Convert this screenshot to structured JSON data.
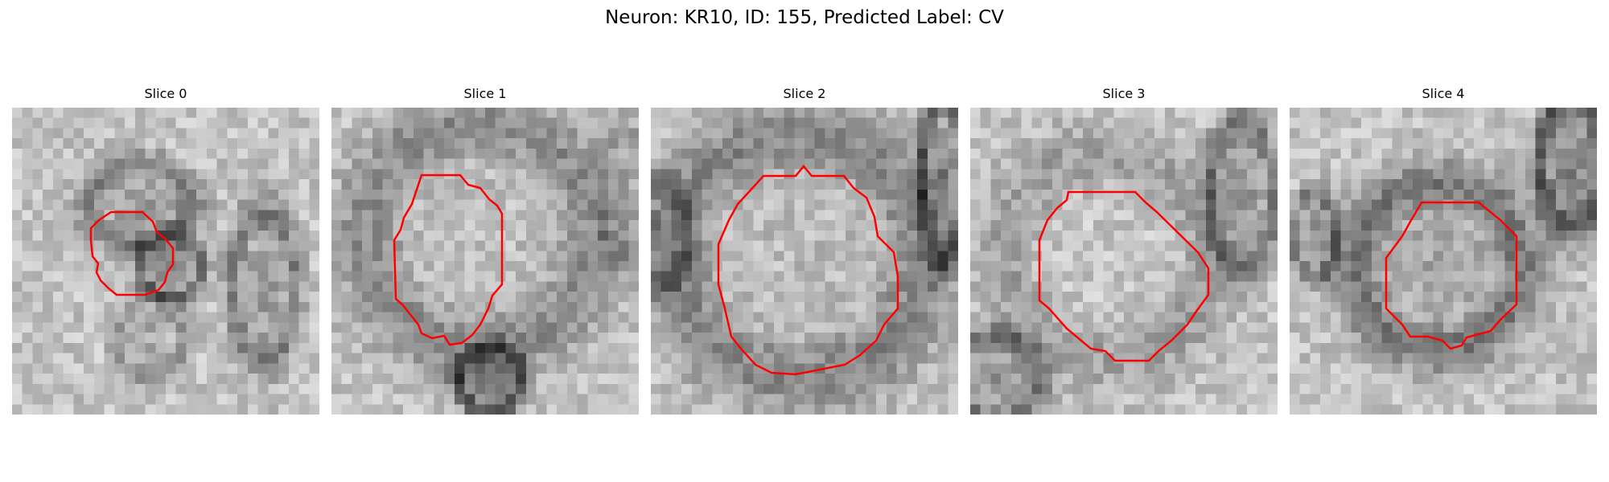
{
  "figure": {
    "title": "Neuron: KR10, ID: 155, Predicted Label: CV"
  },
  "panels": [
    {
      "title": "Slice 0"
    },
    {
      "title": "Slice 1"
    },
    {
      "title": "Slice 2"
    },
    {
      "title": "Slice 3"
    },
    {
      "title": "Slice 4"
    }
  ],
  "colors": {
    "outline": "#ff0000",
    "background": "#ffffff"
  }
}
